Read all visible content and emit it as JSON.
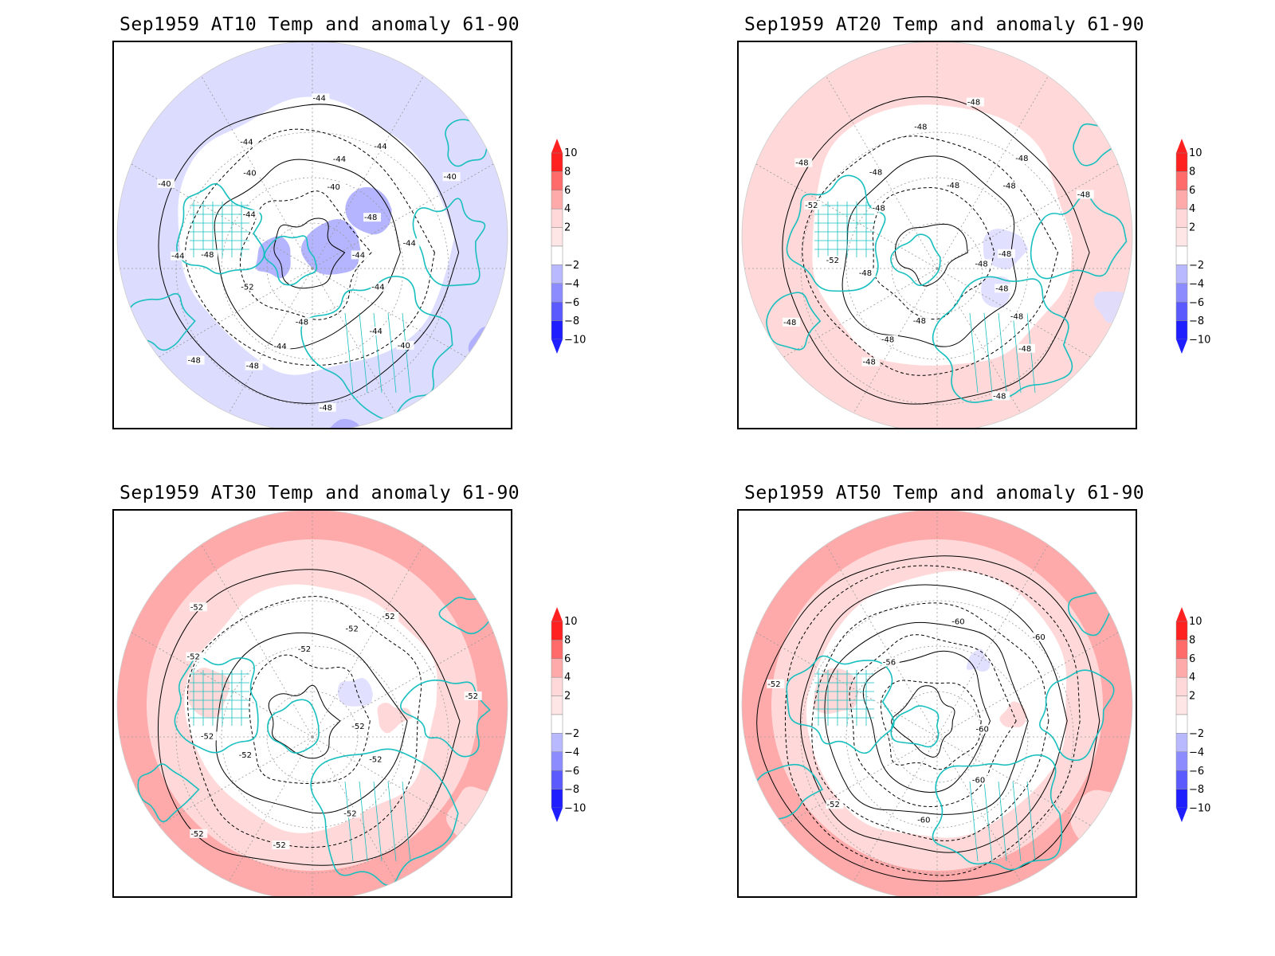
{
  "colors": {
    "coast": "#19bfbf",
    "contour": "#000000",
    "anomaly_scale": [
      {
        "range": [
          -10,
          -8
        ],
        "color": "#1e1eff"
      },
      {
        "range": [
          -8,
          -6
        ],
        "color": "#5a5aff"
      },
      {
        "range": [
          -6,
          -4
        ],
        "color": "#8c8cff"
      },
      {
        "range": [
          -4,
          -2
        ],
        "color": "#b9b9ff"
      },
      {
        "range": [
          -2,
          2
        ],
        "color": "#e1e1ff"
      },
      {
        "range": [
          2,
          4
        ],
        "color": "#ffffff"
      },
      {
        "range": [
          4,
          6
        ],
        "color": "#ffd9d9"
      },
      {
        "range": [
          6,
          8
        ],
        "color": "#ffaaaa"
      },
      {
        "range": [
          8,
          10
        ],
        "color": "#ff6a6a"
      },
      {
        "range": [
          10,
          12
        ],
        "color": "#ff2020"
      }
    ]
  },
  "colorbar": {
    "labels": [
      "10",
      "8",
      "6",
      "4",
      "2",
      "−2",
      "−4",
      "−6",
      "−8",
      "−10"
    ]
  },
  "panels": [
    {
      "id": "at10",
      "title": "Sep1959 AT10 Temp and anomaly 61-90",
      "base_fill": "#dcdcff",
      "inner_fill": "#ffffff",
      "anomaly_patches": [
        {
          "kind": "ring",
          "color": "#dcdcff"
        },
        {
          "kind": "blob",
          "color": "#a8a8ff"
        }
      ],
      "contour_labels": [
        "-44",
        "-44",
        "-44",
        "-40",
        "-48",
        "-48",
        "-44",
        "-48",
        "-48",
        "-52",
        "-48",
        "-44",
        "-40",
        "-44",
        "-40",
        "-44",
        "-44",
        "-40",
        "-44",
        "-44",
        "-40",
        "-48",
        "-44"
      ]
    },
    {
      "id": "at20",
      "title": "Sep1959 AT20 Temp and anomaly 61-90",
      "base_fill": "#ffd9d9",
      "inner_fill": "#ffffff",
      "anomaly_patches": [
        {
          "kind": "ring",
          "color": "#ffd9d9"
        },
        {
          "kind": "blob",
          "color": "#dcdcff"
        }
      ],
      "contour_labels": [
        "-48",
        "-48",
        "-48",
        "-48",
        "-48",
        "-48",
        "-48",
        "-48",
        "-48",
        "-48",
        "-52",
        "-52",
        "-48",
        "-48",
        "-48",
        "-48",
        "-48",
        "-48",
        "-48",
        "-48",
        "-48",
        "-48"
      ]
    },
    {
      "id": "at30",
      "title": "Sep1959 AT30 Temp and anomaly 61-90",
      "base_fill": "#ffaaaa",
      "inner_fill": "#ffffff",
      "anomaly_patches": [
        {
          "kind": "ring",
          "color": "#ffd9d9"
        },
        {
          "kind": "blob",
          "color": "#dcdcff"
        }
      ],
      "contour_labels": [
        "-52",
        "-52",
        "-52",
        "-52",
        "-52",
        "-52",
        "-52",
        "-52",
        "-52",
        "-52",
        "-52",
        "-52",
        "-52"
      ]
    },
    {
      "id": "at50",
      "title": "Sep1959 AT50 Temp and anomaly 61-90",
      "base_fill": "#ffaaaa",
      "inner_fill": "#ffffff",
      "anomaly_patches": [
        {
          "kind": "ring",
          "color": "#ffd9d9"
        },
        {
          "kind": "blob",
          "color": "#dcdcff"
        }
      ],
      "contour_labels": [
        "-60",
        "-60",
        "-60",
        "-52",
        "-52",
        "-56",
        "-60",
        "-60"
      ]
    }
  ]
}
